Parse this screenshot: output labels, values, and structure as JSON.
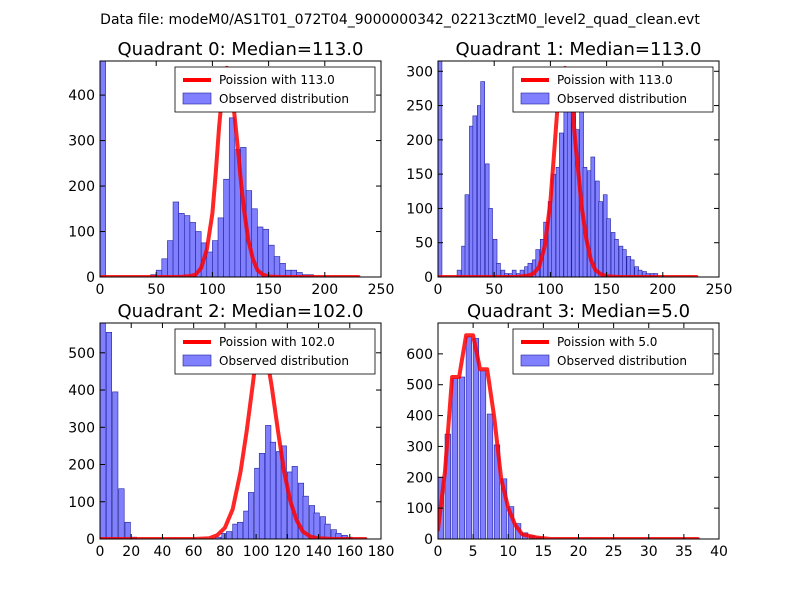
{
  "figure_title": "Data file: modeM0/AS1T01_072T04_9000000342_02213cztM0_level2_quad_clean.evt",
  "colors": {
    "hist_fill": "#8080ff",
    "hist_edge": "#2020a0",
    "curve": "#ff0000",
    "axis": "#000000"
  },
  "chart_data": [
    {
      "type": "bar",
      "title": "Quadrant 0: Median=113.0",
      "legend": {
        "location": "top-right",
        "line_label": "Poission with 113.0",
        "hist_label": "Observed distribution"
      },
      "xlim": [
        0,
        250
      ],
      "ylim": [
        0,
        475
      ],
      "xticks": [
        0,
        50,
        100,
        150,
        200,
        250
      ],
      "xtick_labels": [
        "0",
        "50",
        "100",
        "150",
        "200",
        "250"
      ],
      "yticks": [
        0,
        100,
        200,
        300,
        400
      ],
      "ytick_labels": [
        "0",
        "100",
        "200",
        "300",
        "400"
      ],
      "bin_width": 5,
      "hist_bins": [
        [
          0,
          475
        ],
        [
          45,
          5
        ],
        [
          50,
          15
        ],
        [
          55,
          40
        ],
        [
          60,
          80
        ],
        [
          65,
          165
        ],
        [
          70,
          140
        ],
        [
          75,
          135
        ],
        [
          80,
          120
        ],
        [
          85,
          100
        ],
        [
          90,
          75
        ],
        [
          95,
          55
        ],
        [
          100,
          80
        ],
        [
          105,
          130
        ],
        [
          110,
          215
        ],
        [
          115,
          350
        ],
        [
          120,
          280
        ],
        [
          125,
          285
        ],
        [
          130,
          190
        ],
        [
          135,
          150
        ],
        [
          140,
          110
        ],
        [
          145,
          105
        ],
        [
          150,
          70
        ],
        [
          155,
          45
        ],
        [
          160,
          30
        ],
        [
          165,
          15
        ],
        [
          170,
          15
        ],
        [
          175,
          10
        ],
        [
          180,
          5
        ],
        [
          185,
          5
        ]
      ],
      "curve": {
        "x": [
          0,
          70,
          80,
          85,
          90,
          95,
          100,
          103,
          106,
          109,
          113,
          116,
          119,
          122,
          125,
          128,
          132,
          136,
          140,
          145,
          150,
          160,
          230
        ],
        "y": [
          0,
          0,
          2,
          5,
          20,
          60,
          140,
          230,
          330,
          410,
          460,
          440,
          370,
          300,
          220,
          150,
          80,
          40,
          15,
          5,
          1,
          0,
          0
        ]
      }
    },
    {
      "type": "bar",
      "title": "Quadrant 1: Median=113.0",
      "legend": {
        "location": "top-right",
        "line_label": "Poission with 113.0",
        "hist_label": "Observed distribution"
      },
      "xlim": [
        0,
        250
      ],
      "ylim": [
        0,
        315
      ],
      "xticks": [
        0,
        50,
        100,
        150,
        200,
        250
      ],
      "xtick_labels": [
        "0",
        "50",
        "100",
        "150",
        "200",
        "250"
      ],
      "yticks": [
        0,
        50,
        100,
        150,
        200,
        250,
        300
      ],
      "ytick_labels": [
        "0",
        "50",
        "100",
        "150",
        "200",
        "250",
        "300"
      ],
      "bin_width": 3.5,
      "hist_bins": [
        [
          0,
          315
        ],
        [
          17,
          10
        ],
        [
          21,
          45
        ],
        [
          24,
          120
        ],
        [
          28,
          220
        ],
        [
          31,
          235
        ],
        [
          35,
          250
        ],
        [
          38,
          285
        ],
        [
          42,
          165
        ],
        [
          45,
          100
        ],
        [
          49,
          55
        ],
        [
          52,
          20
        ],
        [
          56,
          10
        ],
        [
          59,
          5
        ],
        [
          63,
          5
        ],
        [
          66,
          10
        ],
        [
          70,
          5
        ],
        [
          73,
          10
        ],
        [
          77,
          15
        ],
        [
          80,
          20
        ],
        [
          84,
          25
        ],
        [
          87,
          40
        ],
        [
          91,
          55
        ],
        [
          94,
          80
        ],
        [
          98,
          110
        ],
        [
          101,
          150
        ],
        [
          105,
          160
        ],
        [
          108,
          210
        ],
        [
          112,
          265
        ],
        [
          115,
          245
        ],
        [
          119,
          260
        ],
        [
          122,
          215
        ],
        [
          126,
          250
        ],
        [
          129,
          160
        ],
        [
          133,
          155
        ],
        [
          136,
          175
        ],
        [
          140,
          140
        ],
        [
          143,
          110
        ],
        [
          147,
          120
        ],
        [
          150,
          85
        ],
        [
          154,
          65
        ],
        [
          157,
          55
        ],
        [
          161,
          45
        ],
        [
          164,
          40
        ],
        [
          168,
          30
        ],
        [
          171,
          25
        ],
        [
          175,
          15
        ],
        [
          178,
          10
        ],
        [
          182,
          8
        ],
        [
          185,
          5
        ],
        [
          189,
          5
        ],
        [
          192,
          5
        ]
      ],
      "curve": {
        "x": [
          0,
          70,
          80,
          85,
          90,
          95,
          100,
          103,
          106,
          109,
          113,
          116,
          119,
          122,
          125,
          128,
          132,
          136,
          140,
          145,
          150,
          160,
          230
        ],
        "y": [
          0,
          0,
          2,
          5,
          15,
          45,
          110,
          175,
          240,
          285,
          305,
          295,
          260,
          200,
          150,
          100,
          55,
          25,
          10,
          4,
          1,
          0,
          0
        ]
      }
    },
    {
      "type": "bar",
      "title": "Quadrant 2: Median=102.0",
      "legend": {
        "location": "top-right",
        "line_label": "Poission with 102.0",
        "hist_label": "Observed distribution"
      },
      "xlim": [
        0,
        180
      ],
      "ylim": [
        0,
        580
      ],
      "xticks": [
        0,
        20,
        40,
        60,
        80,
        100,
        120,
        140,
        160,
        180
      ],
      "xtick_labels": [
        "0",
        "20",
        "40",
        "60",
        "80",
        "100",
        "120",
        "140",
        "160",
        "180"
      ],
      "yticks": [
        0,
        100,
        200,
        300,
        400,
        500
      ],
      "ytick_labels": [
        "0",
        "100",
        "200",
        "300",
        "400",
        "500"
      ],
      "bin_width": 3.5,
      "hist_bins": [
        [
          0,
          580
        ],
        [
          4,
          555
        ],
        [
          8,
          395
        ],
        [
          12,
          135
        ],
        [
          16,
          45
        ],
        [
          20,
          5
        ],
        [
          74,
          5
        ],
        [
          78,
          15
        ],
        [
          81,
          20
        ],
        [
          85,
          40
        ],
        [
          88,
          45
        ],
        [
          92,
          75
        ],
        [
          95,
          125
        ],
        [
          99,
          190
        ],
        [
          102,
          230
        ],
        [
          106,
          305
        ],
        [
          109,
          260
        ],
        [
          113,
          235
        ],
        [
          116,
          250
        ],
        [
          120,
          180
        ],
        [
          123,
          195
        ],
        [
          127,
          150
        ],
        [
          130,
          115
        ],
        [
          134,
          90
        ],
        [
          137,
          70
        ],
        [
          141,
          60
        ],
        [
          144,
          40
        ],
        [
          148,
          25
        ],
        [
          151,
          15
        ],
        [
          155,
          10
        ],
        [
          158,
          5
        ]
      ],
      "curve": {
        "x": [
          0,
          60,
          70,
          75,
          80,
          85,
          90,
          94,
          98,
          102,
          106,
          110,
          114,
          118,
          122,
          126,
          130,
          135,
          140,
          150,
          170
        ],
        "y": [
          0,
          0,
          2,
          10,
          30,
          80,
          180,
          290,
          420,
          555,
          510,
          410,
          290,
          180,
          100,
          50,
          20,
          6,
          2,
          0,
          0
        ]
      }
    },
    {
      "type": "bar",
      "title": "Quadrant 3: Median=5.0",
      "legend": {
        "location": "top-right",
        "line_label": "Poission with 5.0",
        "hist_label": "Observed distribution"
      },
      "xlim": [
        0,
        40
      ],
      "ylim": [
        0,
        700
      ],
      "xticks": [
        0,
        5,
        10,
        15,
        20,
        25,
        30,
        35,
        40
      ],
      "xtick_labels": [
        "0",
        "5",
        "10",
        "15",
        "20",
        "25",
        "30",
        "35",
        "40"
      ],
      "yticks": [
        0,
        100,
        200,
        300,
        400,
        500,
        600
      ],
      "ytick_labels": [
        "0",
        "100",
        "200",
        "300",
        "400",
        "500",
        "600"
      ],
      "bin_width": 0.8,
      "hist_bins": [
        [
          0,
          200
        ],
        [
          1,
          340
        ],
        [
          2,
          520
        ],
        [
          3,
          525
        ],
        [
          4,
          655
        ],
        [
          5,
          650
        ],
        [
          6,
          545
        ],
        [
          7,
          405
        ],
        [
          8,
          305
        ],
        [
          9,
          195
        ],
        [
          10,
          105
        ],
        [
          11,
          50
        ],
        [
          12,
          20
        ],
        [
          13,
          10
        ],
        [
          14,
          5
        ]
      ],
      "curve": {
        "x": [
          0,
          1,
          2,
          3,
          4,
          5,
          6,
          7,
          8,
          9,
          10,
          11,
          12,
          14,
          16,
          20,
          30,
          37
        ],
        "y": [
          30,
          220,
          525,
          525,
          660,
          660,
          550,
          550,
          395,
          195,
          100,
          45,
          15,
          5,
          0,
          0,
          0,
          0
        ]
      }
    }
  ]
}
